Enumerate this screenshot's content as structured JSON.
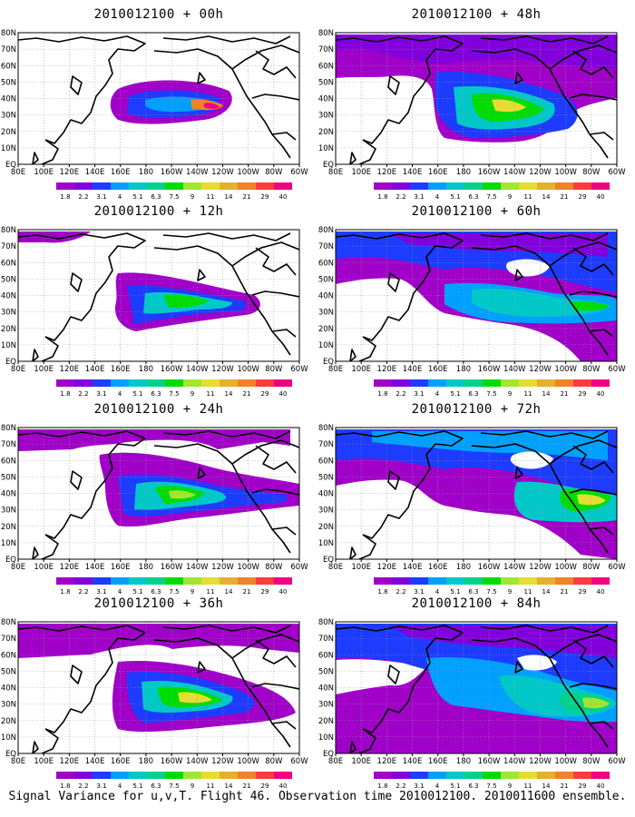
{
  "caption": "Signal Variance for u,v,T. Flight 46. Observation time 2010012100. 2010011600 ensemble.",
  "colorbar": {
    "labels": [
      "1.8",
      "2.2",
      "3.1",
      "4",
      "5.1",
      "6.3",
      "7.5",
      "9",
      "11",
      "14",
      "21",
      "29",
      "40"
    ],
    "colors": [
      "#a000c8",
      "#8200dc",
      "#1e3cff",
      "#00a0ff",
      "#00c8c8",
      "#00d28c",
      "#00dc00",
      "#a0e632",
      "#e6dc32",
      "#e6af2d",
      "#f08228",
      "#fa3c3c",
      "#f00082"
    ]
  },
  "axes": {
    "x_ticks": [
      "80E",
      "100E",
      "120E",
      "140E",
      "160E",
      "180",
      "160W",
      "140W",
      "120W",
      "100W",
      "80W",
      "60W"
    ],
    "y_ticks": [
      "80N",
      "70N",
      "60N",
      "50N",
      "40N",
      "30N",
      "20N",
      "10N",
      "EQ"
    ]
  },
  "chart_data": [
    {
      "type": "heatmap",
      "title": "2010012100 + 00h",
      "lead_hours": 0,
      "max_level": "40"
    },
    {
      "type": "heatmap",
      "title": "2010012100 + 12h",
      "lead_hours": 12,
      "max_level": "9"
    },
    {
      "type": "heatmap",
      "title": "2010012100 + 24h",
      "lead_hours": 24,
      "max_level": "11"
    },
    {
      "type": "heatmap",
      "title": "2010012100 + 36h",
      "lead_hours": 36,
      "max_level": "11"
    },
    {
      "type": "heatmap",
      "title": "2010012100 + 48h",
      "lead_hours": 48,
      "max_level": "11"
    },
    {
      "type": "heatmap",
      "title": "2010012100 + 60h",
      "lead_hours": 60,
      "max_level": "9"
    },
    {
      "type": "heatmap",
      "title": "2010012100 + 72h",
      "lead_hours": 72,
      "max_level": "11"
    },
    {
      "type": "heatmap",
      "title": "2010012100 + 84h",
      "lead_hours": 84,
      "max_level": "11"
    }
  ]
}
